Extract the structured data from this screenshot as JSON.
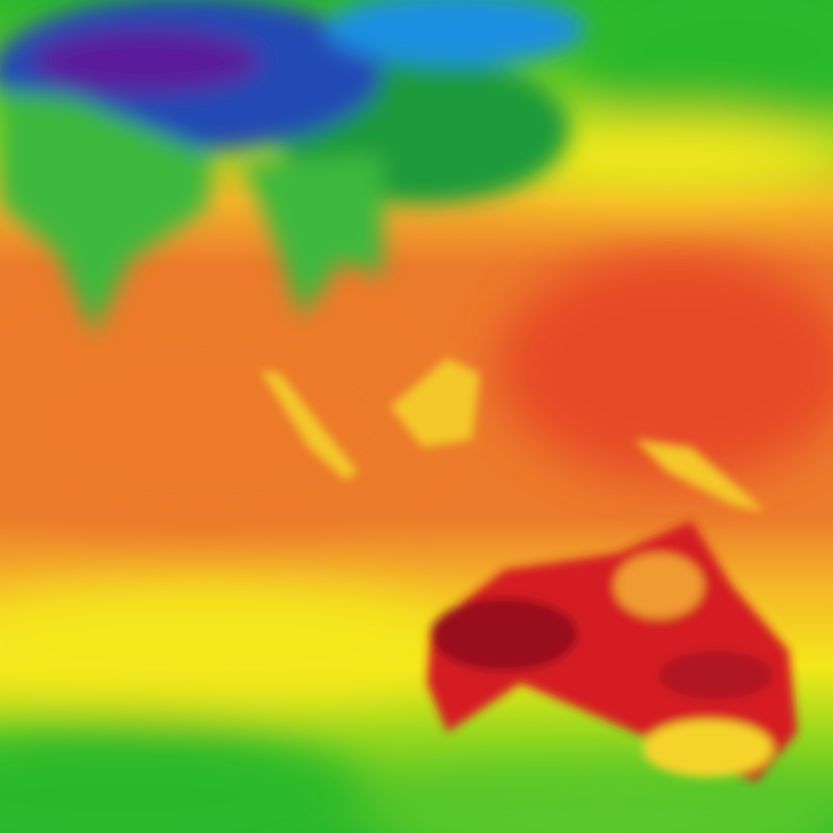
{
  "map": {
    "palette": {
      "purple": "#5a1a9c",
      "deep_blue": "#2448b4",
      "light_blue": "#1a8fe0",
      "green": "#2cb82c",
      "yellow_green": "#9ad81e",
      "yellow": "#f4e81a",
      "orange_yellow": "#f4b42a",
      "orange": "#ec7a2c",
      "red_orange": "#e64a26",
      "red": "#d41e20",
      "dark_red": "#9a0c1c"
    }
  }
}
